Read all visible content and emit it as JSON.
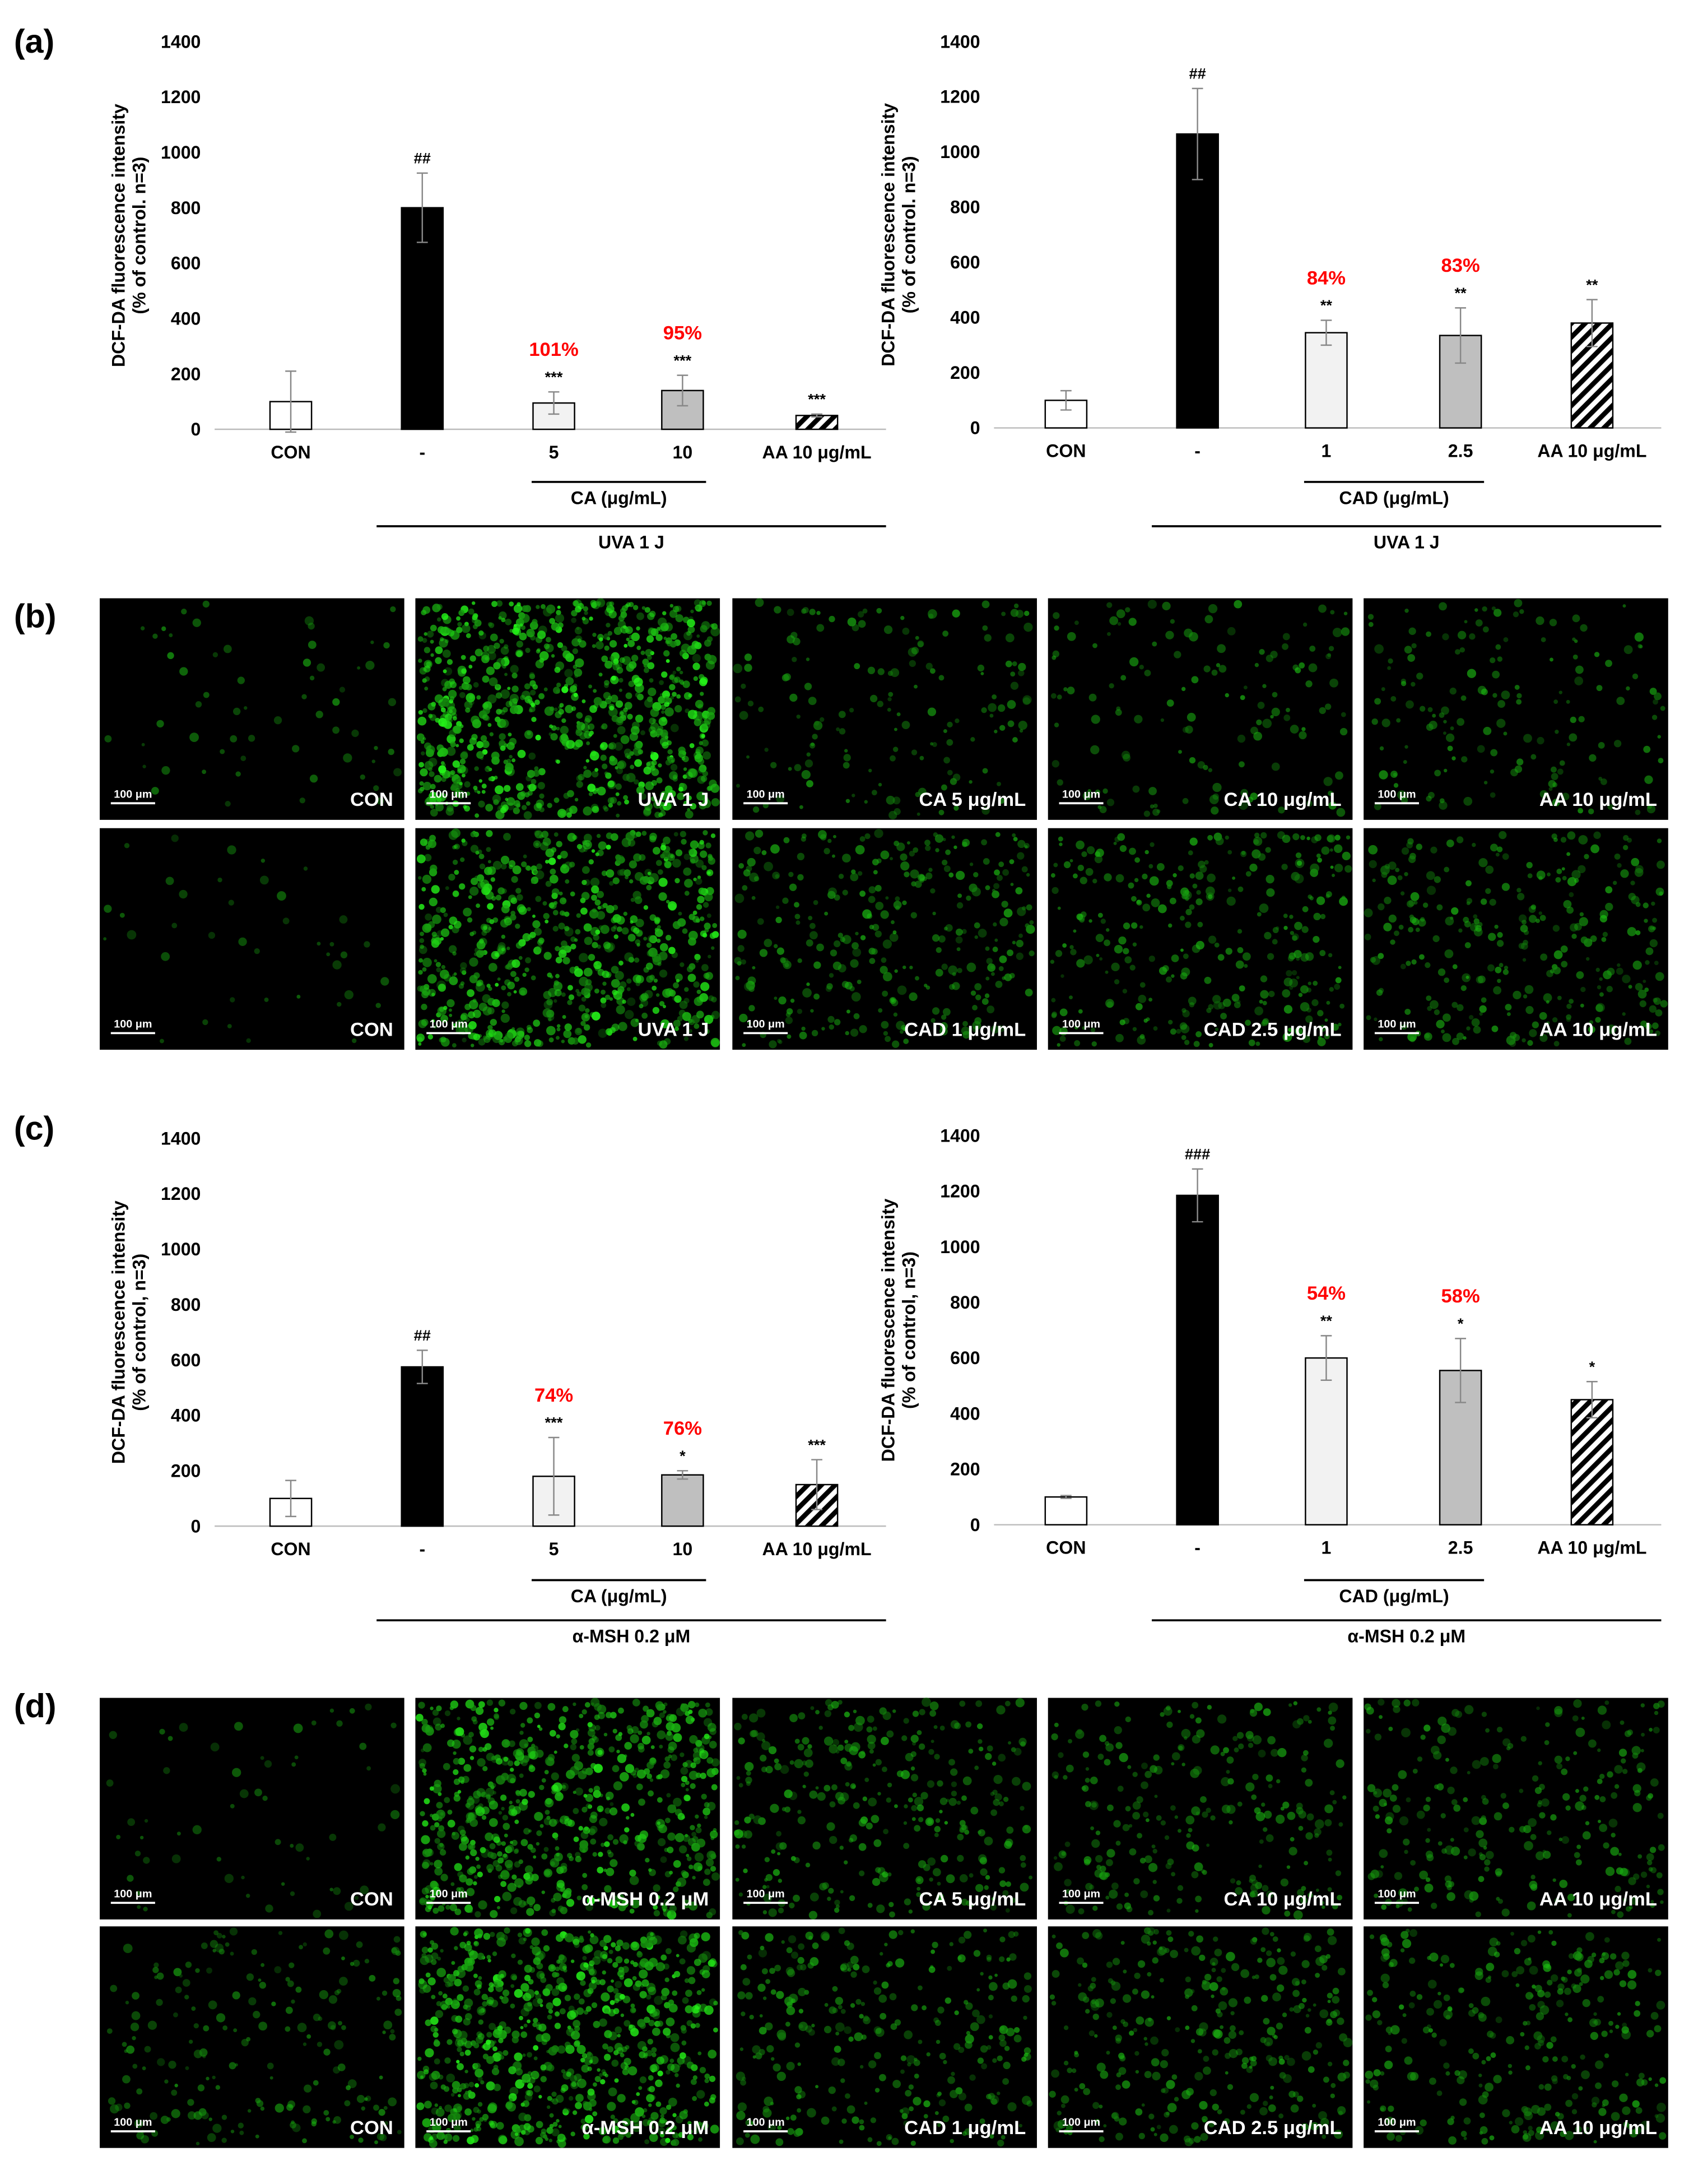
{
  "panel_labels": [
    "(a)",
    "(b)",
    "(c)",
    "(d)"
  ],
  "chart_data": [
    {
      "type": "bar",
      "ylabel": [
        "DCF-DA fluorescence intensity",
        "(% of control. n=3)"
      ],
      "categories": [
        "CON",
        "-",
        "5",
        "10",
        "AA 10 μg/mL"
      ],
      "values": [
        100,
        800,
        95,
        140,
        50
      ],
      "errors": [
        110,
        125,
        40,
        55,
        5
      ],
      "colors": [
        "#ffffff",
        "#000000",
        "#f2f2f2",
        "#bfbfbf",
        "#ffffff"
      ],
      "patterns": [
        "solid",
        "solid",
        "solid",
        "solid",
        "diagonal"
      ],
      "significance": [
        null,
        "##",
        "***",
        "***",
        "***"
      ],
      "percent_labels": [
        null,
        null,
        "101%",
        "95%",
        null
      ],
      "percent_color": "#ff0000",
      "ylim": [
        0,
        1400
      ],
      "yticks": [
        0,
        200,
        400,
        600,
        800,
        1000,
        1200,
        1400
      ],
      "groups": [
        {
          "label": "CA (μg/mL)",
          "span": [
            2,
            3
          ]
        },
        {
          "label": "UVA 1 J",
          "span": [
            1,
            4
          ]
        }
      ]
    },
    {
      "type": "bar",
      "ylabel": [
        "DCF-DA fluorescence intensity",
        "(% of control. n=3)"
      ],
      "categories": [
        "CON",
        "-",
        "1",
        "2.5",
        "AA 10 μg/mL"
      ],
      "values": [
        100,
        1065,
        345,
        335,
        380
      ],
      "errors": [
        35,
        165,
        45,
        100,
        85
      ],
      "colors": [
        "#ffffff",
        "#000000",
        "#f2f2f2",
        "#bfbfbf",
        "#ffffff"
      ],
      "patterns": [
        "solid",
        "solid",
        "solid",
        "solid",
        "diagonal"
      ],
      "significance": [
        null,
        "##",
        "**",
        "**",
        "**"
      ],
      "percent_labels": [
        null,
        null,
        "84%",
        "83%",
        null
      ],
      "percent_color": "#ff0000",
      "ylim": [
        0,
        1400
      ],
      "yticks": [
        0,
        200,
        400,
        600,
        800,
        1000,
        1200,
        1400
      ],
      "groups": [
        {
          "label": "CAD (μg/mL)",
          "span": [
            2,
            3
          ]
        },
        {
          "label": "UVA 1 J",
          "span": [
            1,
            4
          ]
        }
      ]
    },
    {
      "type": "bar",
      "ylabel": [
        "DCF-DA fluorescence intensity",
        "(% of control, n=3)"
      ],
      "categories": [
        "CON",
        "-",
        "5",
        "10",
        "AA 10 μg/mL"
      ],
      "values": [
        100,
        575,
        180,
        185,
        150
      ],
      "errors": [
        65,
        60,
        140,
        15,
        90
      ],
      "colors": [
        "#ffffff",
        "#000000",
        "#f2f2f2",
        "#bfbfbf",
        "#ffffff"
      ],
      "patterns": [
        "solid",
        "solid",
        "solid",
        "solid",
        "diagonal"
      ],
      "significance": [
        null,
        "##",
        "***",
        "*",
        "***"
      ],
      "percent_labels": [
        null,
        null,
        "74%",
        "76%",
        null
      ],
      "percent_color": "#ff0000",
      "ylim": [
        0,
        1400
      ],
      "yticks": [
        0,
        200,
        400,
        600,
        800,
        1000,
        1200,
        1400
      ],
      "groups": [
        {
          "label": "CA (μg/mL)",
          "span": [
            2,
            3
          ]
        },
        {
          "label": "α-MSH 0.2 μM",
          "span": [
            1,
            4
          ]
        }
      ]
    },
    {
      "type": "bar",
      "ylabel": [
        "DCF-DA fluorescence intensity",
        "(% of control, n=3)"
      ],
      "categories": [
        "CON",
        "-",
        "1",
        "2.5",
        "AA 10 μg/mL"
      ],
      "values": [
        100,
        1185,
        600,
        555,
        450
      ],
      "errors": [
        5,
        95,
        80,
        115,
        65
      ],
      "colors": [
        "#ffffff",
        "#000000",
        "#f2f2f2",
        "#bfbfbf",
        "#ffffff"
      ],
      "patterns": [
        "solid",
        "solid",
        "solid",
        "solid",
        "diagonal"
      ],
      "significance": [
        null,
        "###",
        "**",
        "*",
        "*"
      ],
      "percent_labels": [
        null,
        null,
        "54%",
        "58%",
        null
      ],
      "percent_color": "#ff0000",
      "ylim": [
        0,
        1400
      ],
      "yticks": [
        0,
        200,
        400,
        600,
        800,
        1000,
        1200,
        1400
      ],
      "groups": [
        {
          "label": "CAD (μg/mL)",
          "span": [
            2,
            3
          ]
        },
        {
          "label": "α-MSH 0.2 μM",
          "span": [
            1,
            4
          ]
        }
      ]
    }
  ],
  "images": [
    {
      "scale_bar": "100 μm",
      "rows": [
        [
          "CON",
          "UVA 1 J",
          "CA 5 μg/mL",
          "CA 10 μg/mL",
          "AA 10 μg/mL"
        ],
        [
          "CON",
          "UVA 1 J",
          "CAD 1 μg/mL",
          "CAD 2.5 μg/mL",
          "AA 10 μg/mL"
        ]
      ]
    },
    {
      "scale_bar": "100 μm",
      "rows": [
        [
          "CON",
          "α-MSH 0.2 μM",
          "CA 5 μg/mL",
          "CA 10 μg/mL",
          "AA 10 μg/mL"
        ],
        [
          "CON",
          "α-MSH 0.2 μM",
          "CAD 1 μg/mL",
          "CAD 2.5 μg/mL",
          "AA 10 μg/mL"
        ]
      ]
    }
  ]
}
